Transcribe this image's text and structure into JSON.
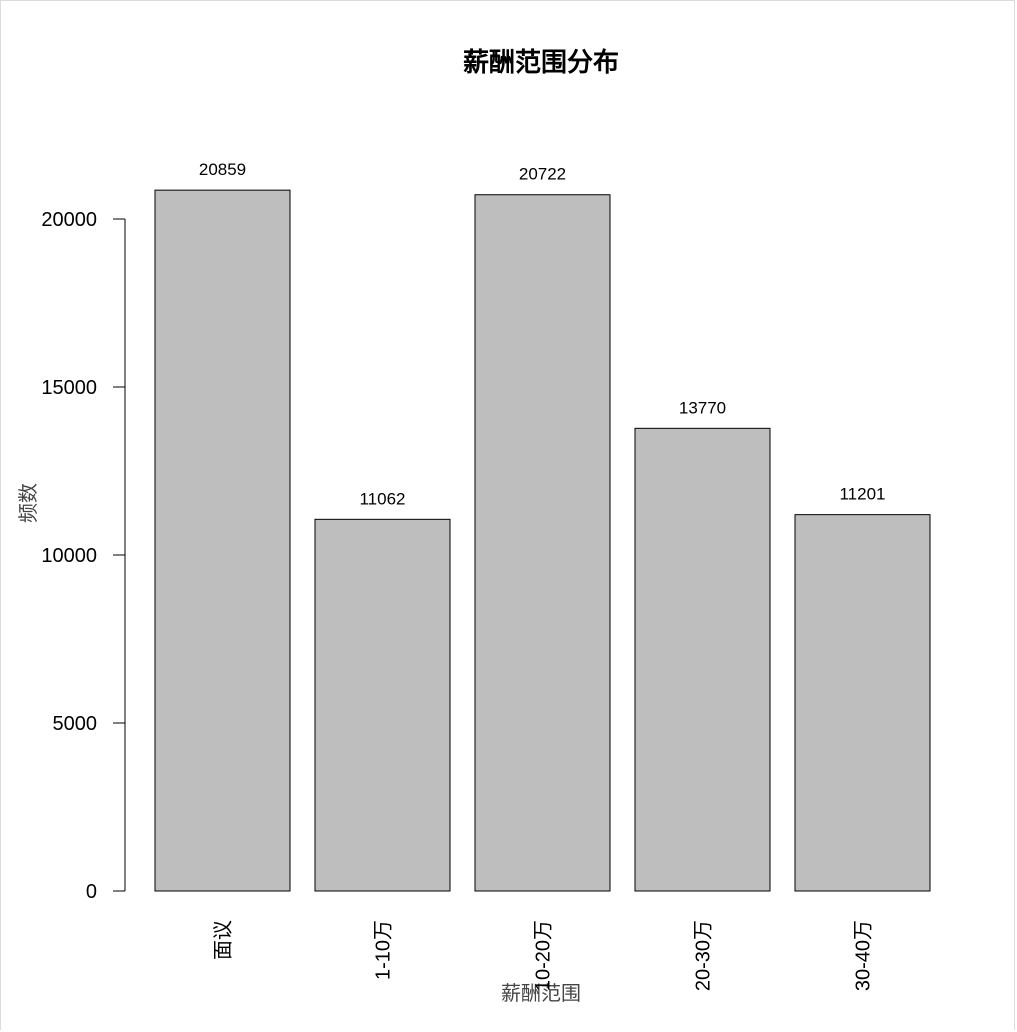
{
  "chart_data": {
    "type": "bar",
    "title": "薪酬范围分布",
    "xlabel": "薪酬范围",
    "ylabel": "频数",
    "categories": [
      "面议",
      "1-10万",
      "10-20万",
      "20-30万",
      "30-40万"
    ],
    "values": [
      20859,
      11062,
      20722,
      13770,
      11201
    ],
    "data_labels": [
      "20859",
      "11062",
      "20722",
      "13770",
      "11201"
    ],
    "yticks": [
      0,
      5000,
      10000,
      15000,
      20000
    ],
    "ytick_labels": [
      "0",
      "5000",
      "10000",
      "15000",
      "20000"
    ],
    "ylim": [
      0,
      20859
    ],
    "grid": false,
    "legend": "none",
    "bar_color": "#bebebe"
  }
}
